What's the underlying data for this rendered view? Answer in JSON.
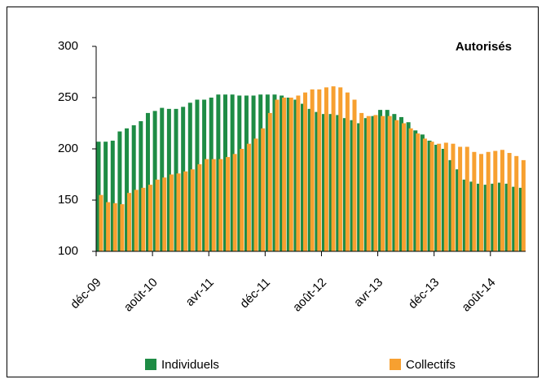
{
  "chart_data": {
    "type": "bar",
    "title": "Autorisés",
    "categories": [
      "déc-09",
      null,
      null,
      null,
      null,
      null,
      null,
      null,
      "août-10",
      null,
      null,
      null,
      null,
      null,
      null,
      null,
      "avr-11",
      null,
      null,
      null,
      null,
      null,
      null,
      null,
      "déc-11",
      null,
      null,
      null,
      null,
      null,
      null,
      null,
      "août-12",
      null,
      null,
      null,
      null,
      null,
      null,
      null,
      "avr-13",
      null,
      null,
      null,
      null,
      null,
      null,
      null,
      "déc-13",
      null,
      null,
      null,
      null,
      null,
      null,
      null,
      "août-14",
      null,
      null,
      null,
      null
    ],
    "series": [
      {
        "name": "Individuels",
        "color": "#1e8c45",
        "values": [
          207,
          207,
          208,
          217,
          220,
          223,
          227,
          235,
          237,
          240,
          239,
          239,
          241,
          245,
          248,
          248,
          250,
          253,
          253,
          253,
          252,
          252,
          252,
          253,
          253,
          253,
          252,
          250,
          248,
          244,
          239,
          236,
          234,
          234,
          233,
          230,
          228,
          225,
          230,
          232,
          238,
          238,
          234,
          231,
          226,
          218,
          214,
          208,
          204,
          200,
          189,
          180,
          170,
          168,
          166,
          165,
          166,
          167,
          166,
          163,
          162
        ]
      },
      {
        "name": "Collectifs",
        "color": "#f7a030",
        "values": [
          155,
          148,
          147,
          146,
          157,
          160,
          162,
          165,
          170,
          172,
          175,
          176,
          178,
          180,
          185,
          190,
          190,
          190,
          192,
          195,
          200,
          205,
          210,
          220,
          235,
          248,
          250,
          250,
          252,
          255,
          258,
          258,
          260,
          261,
          260,
          255,
          248,
          235,
          232,
          233,
          232,
          232,
          228,
          225,
          220,
          215,
          210,
          207,
          205,
          206,
          205,
          202,
          202,
          197,
          195,
          197,
          198,
          199,
          196,
          193,
          189
        ]
      }
    ],
    "ylim": [
      100,
      300
    ],
    "yticks": [
      100,
      150,
      200,
      250,
      300
    ]
  }
}
